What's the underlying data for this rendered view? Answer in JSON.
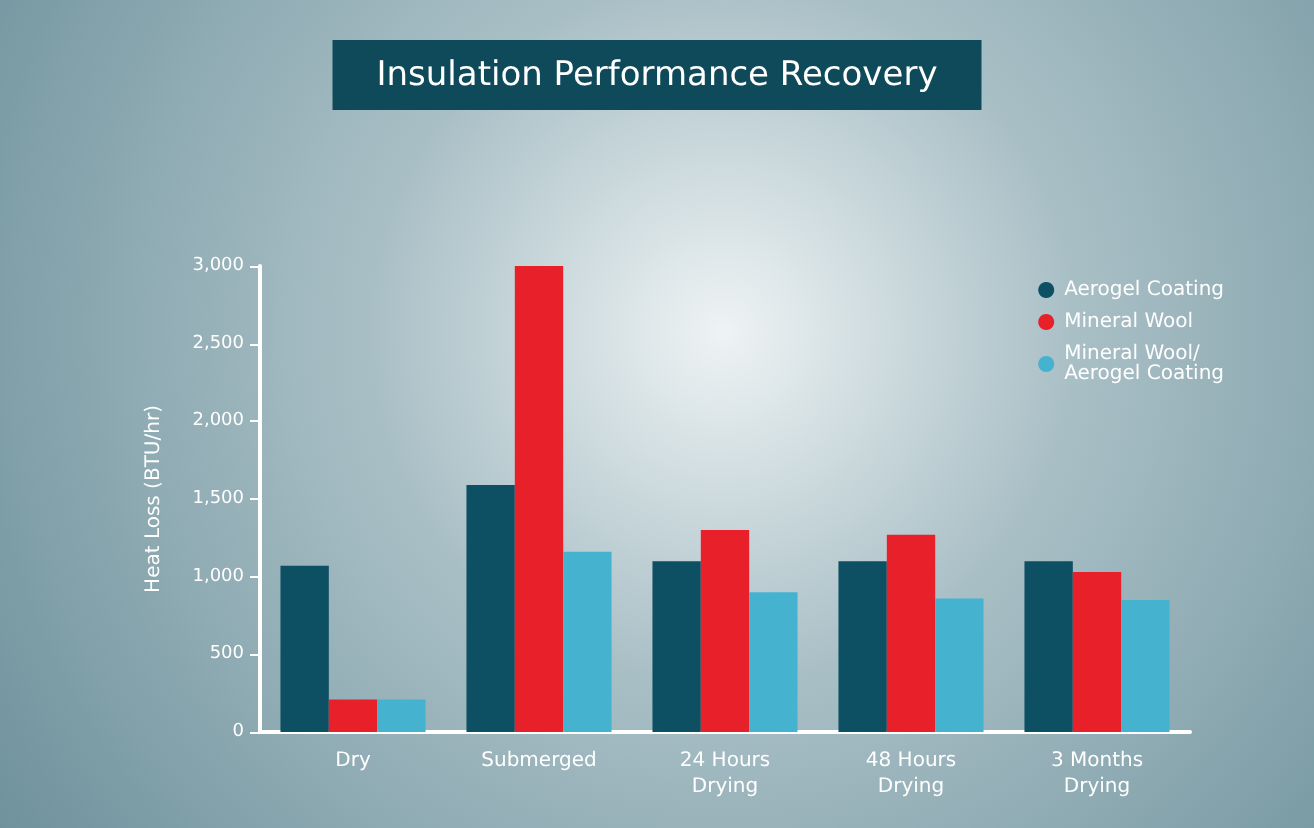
{
  "chart_data": {
    "type": "bar",
    "title": "Insulation Performance Recovery",
    "ylabel": "Heat Loss (BTU/hr)",
    "categories": [
      "Dry",
      "Submerged",
      "24 Hours\nDrying",
      "48 Hours\nDrying",
      "3 Months\nDrying"
    ],
    "series": [
      {
        "name": "Aerogel Coating",
        "color": "#0d4f63",
        "values": [
          1070,
          1590,
          1100,
          1100,
          1100
        ]
      },
      {
        "name": "Mineral Wool",
        "color": "#e8202a",
        "values": [
          210,
          3000,
          1300,
          1270,
          1030
        ]
      },
      {
        "name": "Mineral Wool/\nAerogel Coating",
        "color": "#45b3cf",
        "values": [
          210,
          1160,
          900,
          860,
          850
        ]
      }
    ],
    "ylim": [
      0,
      3000
    ],
    "yticks": [
      {
        "value": 0,
        "label": "0"
      },
      {
        "value": 500,
        "label": "500"
      },
      {
        "value": 1000,
        "label": "1,000"
      },
      {
        "value": 1500,
        "label": "1,500"
      },
      {
        "value": 2000,
        "label": "2,000"
      },
      {
        "value": 2500,
        "label": "2,500"
      },
      {
        "value": 3000,
        "label": "3,000"
      }
    ],
    "grid": false,
    "legend": "top right"
  }
}
